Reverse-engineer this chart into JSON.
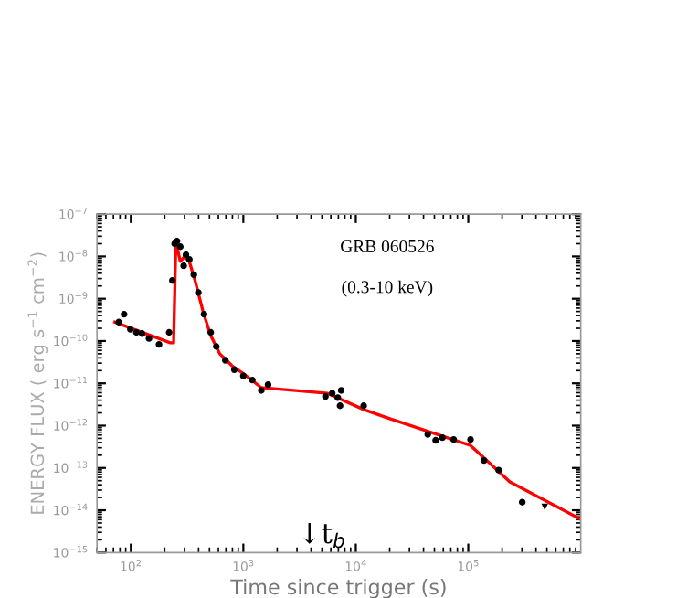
{
  "chart_data": {
    "type": "scatter",
    "xlabel": "Time since trigger (s)",
    "ylabel": "ENERGY FLUX ( erg s$^{−1}$ cm$^{−2}$)",
    "log": "xy",
    "xlim": [
      50,
      1000000
    ],
    "ylim": [
      1e-15,
      1e-07
    ],
    "xticks": [
      {
        "value": 100,
        "label": "10$^{2}$"
      },
      {
        "value": 1000,
        "label": "10$^{3}$"
      },
      {
        "value": 10000,
        "label": "10$^{4}$"
      },
      {
        "value": 100000,
        "label": "10$^{5}$"
      }
    ],
    "yticks": [
      {
        "value": 1e-15,
        "label": "10$^{−15}$"
      },
      {
        "value": 1e-14,
        "label": "10$^{−14}$"
      },
      {
        "value": 1e-13,
        "label": "10$^{−13}$"
      },
      {
        "value": 1e-12,
        "label": "10$^{−12}$"
      },
      {
        "value": 1e-11,
        "label": "10$^{−11}$"
      },
      {
        "value": 1e-10,
        "label": "10$^{−10}$"
      },
      {
        "value": 1e-09,
        "label": "10$^{−9}$"
      },
      {
        "value": 1e-08,
        "label": "10$^{−8}$"
      },
      {
        "value": 1e-07,
        "label": "10$^{−7}$"
      }
    ],
    "grid": false,
    "annotations": [
      "GRB 060526",
      "(0.3-10 keV)",
      "↓t$_{b}$"
    ],
    "series": [
      {
        "marker": "circle",
        "color": "#000000",
        "x": [
          78,
          87,
          99,
          112,
          126,
          145,
          178,
          219,
          234,
          245,
          257,
          275,
          295,
          309,
          331,
          363,
          398,
          447,
          513,
          575,
          692,
          832,
          1000,
          1202,
          1445,
          1660,
          5370,
          6166,
          6918,
          7413,
          7244,
          11750,
          43650,
          51290,
          58880,
          74130,
          104700,
          138000,
          186200,
          302000
        ],
        "values": [
          2.8e-10,
          4.3e-10,
          1.9e-10,
          1.6e-10,
          1.5e-10,
          1.15e-10,
          8.3e-11,
          1.6e-10,
          2.7e-09,
          2e-08,
          2.3e-08,
          1.7e-08,
          6e-09,
          1.1e-08,
          8.5e-09,
          3.7e-09,
          1.4e-09,
          4.3e-10,
          1.6e-10,
          7.4e-11,
          3.5e-11,
          2.1e-11,
          1.5e-11,
          1.2e-11,
          6.8e-12,
          9.3e-12,
          4.9e-12,
          5.8e-12,
          4.6e-12,
          6.8e-12,
          2.95e-12,
          2.95e-12,
          6.2e-13,
          4.5e-13,
          5.2e-13,
          4.7e-13,
          4.7e-13,
          1.5e-13,
          8.9e-14,
          1.55e-14
        ]
      },
      {
        "marker": "triangle",
        "color": "#000000",
        "x": [
          478600
        ],
        "values": [
          1.2e-14
        ]
      },
      {
        "type": "line",
        "marker": "none",
        "line_style": "solid",
        "color": "#ff0000",
        "x": [
          72,
          224,
          240,
          251,
          257,
          275,
          302,
          331,
          372,
          437,
          513,
          617,
          794,
          1000,
          1445,
          5623,
          11750,
          19500,
          104700,
          234400,
          977000
        ],
        "values": [
          2.8e-10,
          9.1e-11,
          9.1e-11,
          2e-08,
          1.7e-08,
          7.6e-09,
          1e-08,
          7.6e-09,
          2.7e-09,
          5.1e-10,
          1.35e-10,
          5e-11,
          2.6e-11,
          1.7e-11,
          7.9e-12,
          5.8e-12,
          2.4e-12,
          1.5e-12,
          3.4e-13,
          4.7e-14,
          6.3e-15
        ]
      }
    ]
  }
}
